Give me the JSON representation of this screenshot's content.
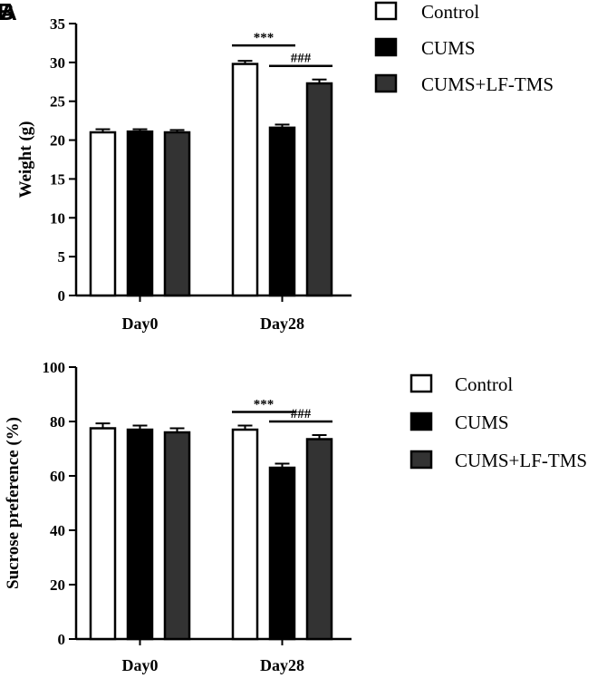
{
  "panel_labels": [
    "A",
    "B"
  ],
  "chart_data": [
    {
      "type": "bar",
      "title": "",
      "xlabel": "",
      "ylabel": "Weight (g)",
      "categories": [
        "Day0",
        "Day28"
      ],
      "ylim": [
        0,
        35
      ],
      "yticks": [
        0,
        5,
        10,
        15,
        20,
        25,
        30,
        35
      ],
      "grid": false,
      "legend_position": "top-right",
      "series": [
        {
          "name": "Control",
          "values": [
            21.0,
            29.8
          ],
          "errors": [
            0.4,
            0.4
          ],
          "color": "#ffffff"
        },
        {
          "name": "CUMS",
          "values": [
            21.1,
            21.6
          ],
          "errors": [
            0.3,
            0.4
          ],
          "color": "#000000"
        },
        {
          "name": "CUMS+LF-TMS",
          "values": [
            21.0,
            27.3
          ],
          "errors": [
            0.3,
            0.5
          ],
          "color": "#333333"
        }
      ],
      "annotations": [
        {
          "text": "***",
          "category": "Day28",
          "from_series": 0,
          "to_series": 1
        },
        {
          "text": "###",
          "category": "Day28",
          "from_series": 1,
          "to_series": 2
        }
      ]
    },
    {
      "type": "bar",
      "title": "",
      "xlabel": "",
      "ylabel": "Sucrose preference (%)",
      "categories": [
        "Day0",
        "Day28"
      ],
      "ylim": [
        0,
        100
      ],
      "yticks": [
        0,
        20,
        40,
        60,
        80,
        100
      ],
      "grid": false,
      "legend_position": "right",
      "series": [
        {
          "name": "Control",
          "values": [
            77.5,
            77.0
          ],
          "errors": [
            1.8,
            1.5
          ],
          "color": "#ffffff"
        },
        {
          "name": "CUMS",
          "values": [
            77.0,
            63.0
          ],
          "errors": [
            1.5,
            1.5
          ],
          "color": "#000000"
        },
        {
          "name": "CUMS+LF-TMS",
          "values": [
            76.0,
            73.5
          ],
          "errors": [
            1.5,
            1.5
          ],
          "color": "#333333"
        }
      ],
      "annotations": [
        {
          "text": "***",
          "category": "Day28",
          "from_series": 0,
          "to_series": 1
        },
        {
          "text": "###",
          "category": "Day28",
          "from_series": 1,
          "to_series": 2
        }
      ]
    }
  ]
}
